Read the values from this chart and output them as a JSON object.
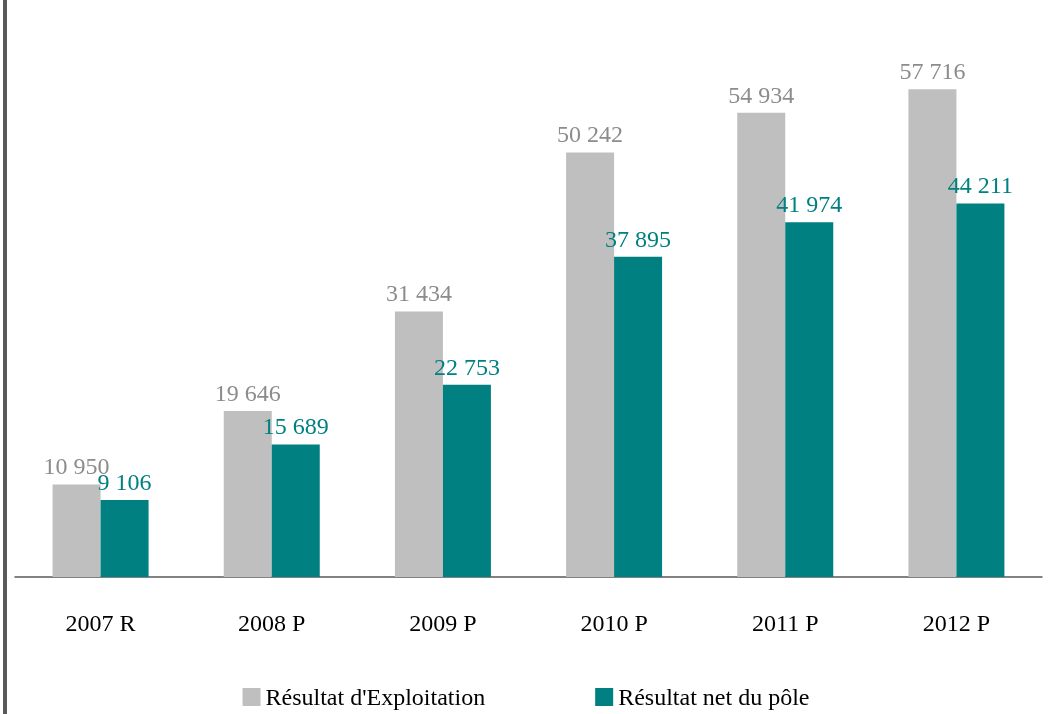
{
  "chart_data": {
    "type": "bar",
    "categories": [
      "2007 R",
      "2008 P",
      "2009 P",
      "2010 P",
      "2011 P",
      "2012 P"
    ],
    "series": [
      {
        "name": "Résultat d'Exploitation",
        "color": "#bfbfbf",
        "values": [
          10950,
          19646,
          31434,
          50242,
          54934,
          57716
        ],
        "value_labels": [
          "10 950",
          "19 646",
          "31 434",
          "50 242",
          "54 934",
          "57 716"
        ]
      },
      {
        "name": "Résultat net du pôle",
        "color": "#008080",
        "values": [
          9106,
          15689,
          22753,
          37895,
          41974,
          44211
        ],
        "value_labels": [
          "9 106",
          "15 689",
          "22 753",
          "37 895",
          "41 974",
          "44 211"
        ]
      }
    ],
    "legend": "bottom"
  }
}
